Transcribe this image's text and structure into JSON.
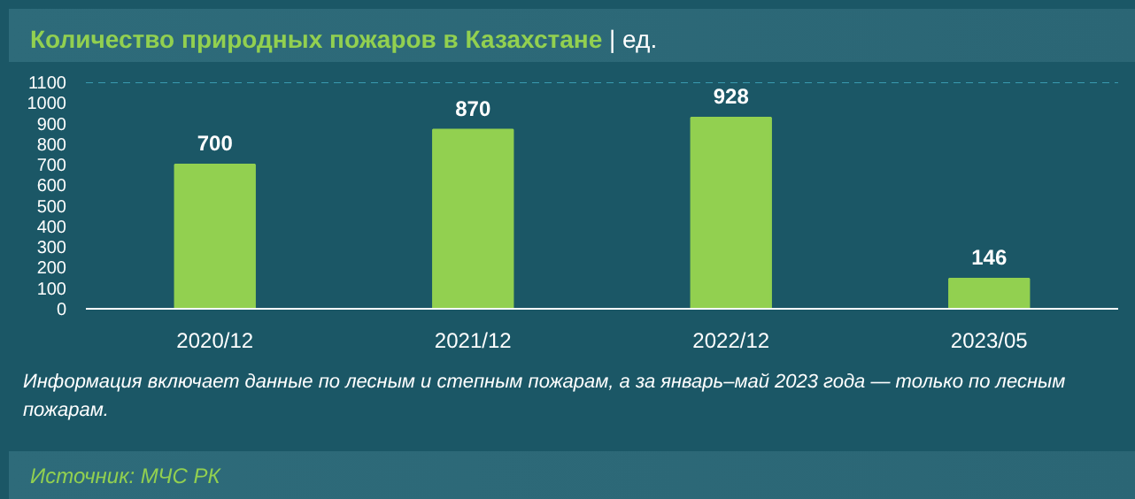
{
  "chart_data": {
    "type": "bar",
    "title": "Количество природных пожаров в Казахстане",
    "subtitle": "| ед.",
    "categories": [
      "2020/12",
      "2021/12",
      "2022/12",
      "2023/05"
    ],
    "values": [
      700,
      870,
      928,
      146
    ],
    "color": "#92d050",
    "ylim": [
      0,
      1100
    ],
    "yticks": [
      0,
      100,
      200,
      300,
      400,
      500,
      600,
      700,
      800,
      900,
      1000,
      1100
    ],
    "grid": false,
    "data_labels": true,
    "annotations": [
      "Информация включает данные по лесным и степным пожарам, а за январь–май 2023 года — только по лесным пожарам.",
      "Источник: МЧС РК"
    ]
  }
}
